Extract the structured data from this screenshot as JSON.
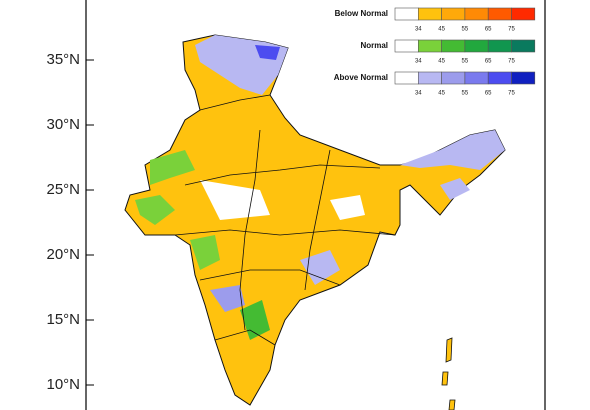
{
  "axis": {
    "yticks": [
      "35°N",
      "30°N",
      "25°N",
      "20°N",
      "15°N",
      "10°N"
    ]
  },
  "legend": [
    {
      "label": "Below Normal",
      "colors": [
        "#ffffff",
        "#ffc20e",
        "#ffa90a",
        "#ff8a05",
        "#ff5a00",
        "#ff2a00"
      ],
      "ticks": [
        34,
        45,
        55,
        65,
        75
      ]
    },
    {
      "label": "Normal",
      "colors": [
        "#ffffff",
        "#7ad13a",
        "#44bb33",
        "#22a83e",
        "#11964f",
        "#0a7a5e"
      ],
      "ticks": [
        34,
        45,
        55,
        65,
        75
      ]
    },
    {
      "label": "Above Normal",
      "colors": [
        "#ffffff",
        "#b8b8f2",
        "#9c9cec",
        "#7a7aee",
        "#4c4cf0",
        "#1020c0"
      ],
      "ticks": [
        34,
        45,
        55,
        65,
        75
      ]
    }
  ]
}
